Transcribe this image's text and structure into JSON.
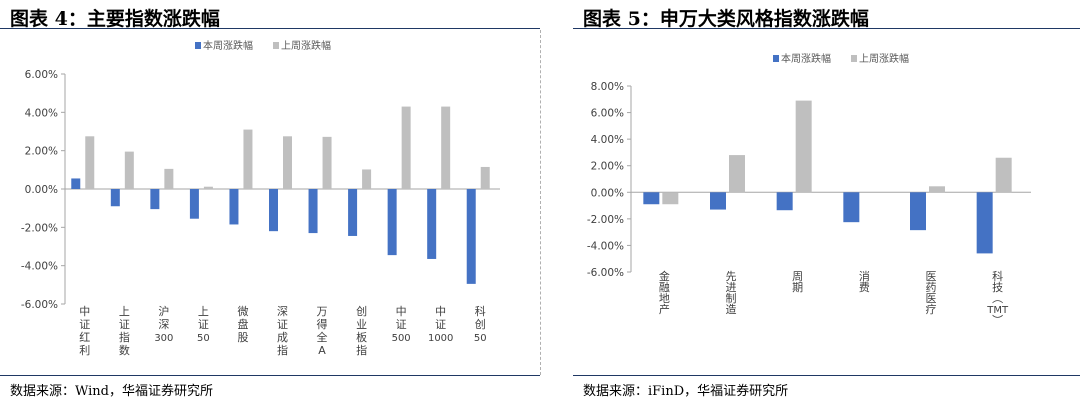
{
  "left": {
    "title": "图表 4：主要指数涨跌幅",
    "source": "数据来源：Wind，华福证券研究所"
  },
  "right": {
    "title": "图表 5：申万大类风格指数涨跌幅",
    "source": "数据来源：iFinD，华福证券研究所"
  },
  "chart_data": [
    {
      "type": "bar",
      "title": "",
      "xlabel": "",
      "ylabel": "",
      "ylim": [
        -6,
        6
      ],
      "yticks": [
        6,
        4,
        2,
        0,
        -2,
        -4,
        -6
      ],
      "ytick_labels": [
        "6.00%",
        "4.00%",
        "2.00%",
        "0.00%",
        "-2.00%",
        "-4.00%",
        "-6.00%"
      ],
      "categories": [
        "中证红利",
        "上证指数",
        "沪深300",
        "上证50",
        "微盘股",
        "深证成指",
        "万得全A",
        "创业板指",
        "中证500",
        "中证1000",
        "科创50"
      ],
      "series": [
        {
          "name": "本周涨跌幅",
          "color": "#4472c4",
          "values": [
            0.55,
            -0.9,
            -1.05,
            -1.55,
            -1.85,
            -2.2,
            -2.3,
            -2.45,
            -3.45,
            -3.65,
            -4.95
          ]
        },
        {
          "name": "上周涨跌幅",
          "color": "#bfbfbf",
          "values": [
            2.75,
            1.95,
            1.05,
            0.12,
            3.1,
            2.75,
            2.72,
            1.02,
            4.3,
            4.3,
            1.15
          ]
        }
      ],
      "legend": "top"
    },
    {
      "type": "bar",
      "title": "",
      "xlabel": "",
      "ylabel": "",
      "ylim": [
        -6,
        8
      ],
      "yticks": [
        8,
        6,
        4,
        2,
        0,
        -2,
        -4,
        -6
      ],
      "ytick_labels": [
        "8.00%",
        "6.00%",
        "4.00%",
        "2.00%",
        "0.00%",
        "-2.00%",
        "-4.00%",
        "-6.00%"
      ],
      "categories": [
        "金融地产",
        "先进制造",
        "周期",
        "消费",
        "医药医疗",
        "科技（TMT）"
      ],
      "series": [
        {
          "name": "本周涨跌幅",
          "color": "#4472c4",
          "values": [
            -0.9,
            -1.3,
            -1.35,
            -2.25,
            -2.85,
            -4.6
          ]
        },
        {
          "name": "上周涨跌幅",
          "color": "#bfbfbf",
          "values": [
            -0.9,
            2.8,
            6.9,
            0.0,
            0.45,
            2.6
          ]
        }
      ],
      "legend": "top"
    }
  ]
}
